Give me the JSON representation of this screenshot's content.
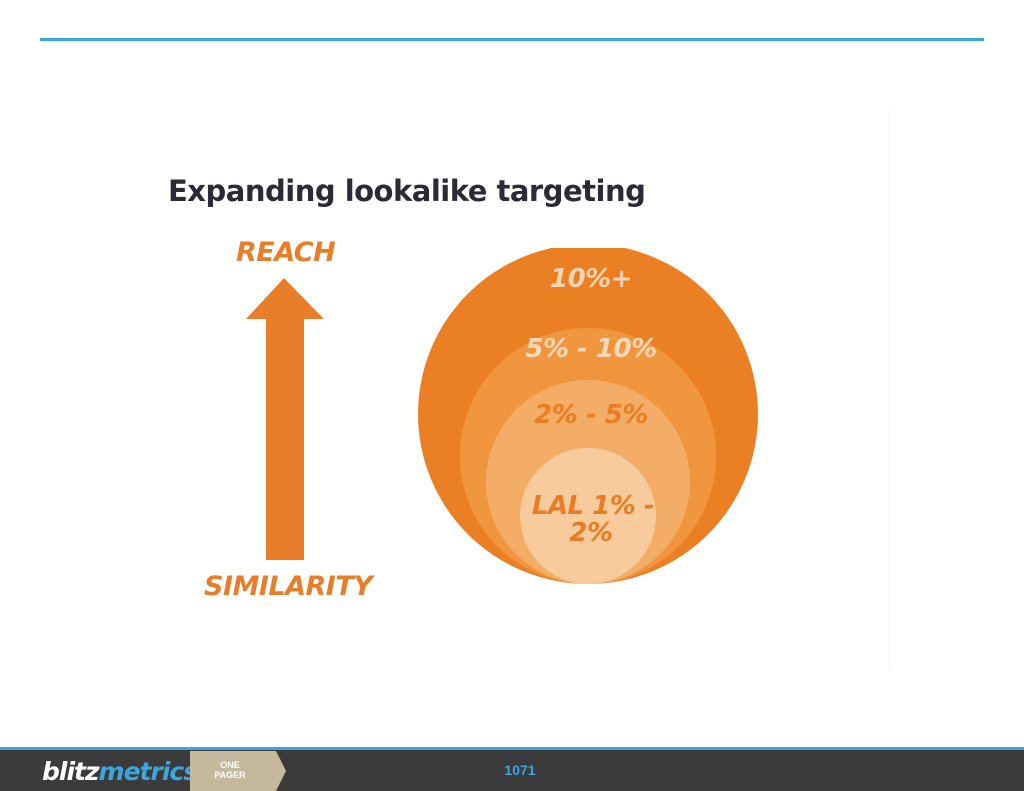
{
  "slide": {
    "title": "Expanding lookalike targeting",
    "arrow": {
      "top_label": "REACH",
      "bottom_label": "SIMILARITY",
      "color": "#e87e2a"
    },
    "rings": [
      {
        "label": "10%+",
        "color": "#eb7f24",
        "text_color": "#f6d4b2"
      },
      {
        "label": "5% - 10%",
        "color": "#f0963e",
        "text_color": "#f8d8b8"
      },
      {
        "label": "2% - 5%",
        "color": "#f4ad67",
        "text_color": "#ea7c22"
      },
      {
        "label": "LAL 1% -",
        "label_line2": "2%",
        "color": "#f8cb9c",
        "text_color": "#eb7c22"
      }
    ]
  },
  "footer": {
    "logo_part1": "blitz",
    "logo_part2": "metrics",
    "tab_line1": "ONE",
    "tab_line2": "PAGER",
    "page_number": "1071",
    "colors": {
      "bar": "#3b3b3b",
      "accent": "#3aa6dd",
      "tab": "#c5b89c"
    }
  }
}
